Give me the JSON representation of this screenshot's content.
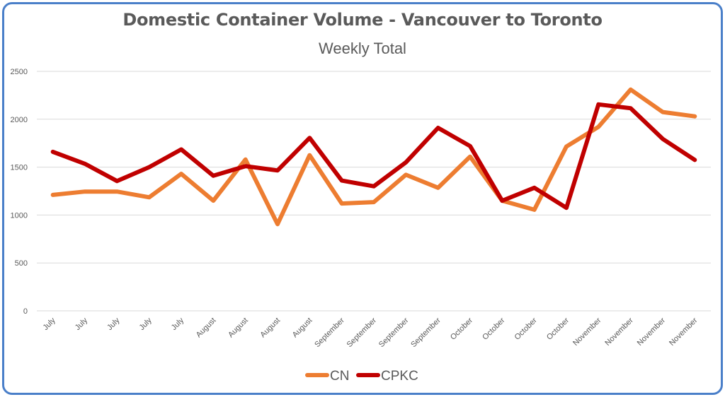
{
  "chart_data": {
    "type": "line",
    "title": "Domestic Container Volume - Vancouver to Toronto",
    "subtitle": "Weekly Total",
    "xlabel": "",
    "ylabel": "",
    "ylim": [
      0,
      2500
    ],
    "yticks": [
      0,
      500,
      1000,
      1500,
      2000,
      2500
    ],
    "grid": true,
    "legend_position": "bottom",
    "categories": [
      "July",
      "July",
      "July",
      "July",
      "July",
      "August",
      "August",
      "August",
      "August",
      "September",
      "September",
      "September",
      "September",
      "October",
      "October",
      "October",
      "October",
      "November",
      "November",
      "November",
      "November"
    ],
    "series": [
      {
        "name": "CN",
        "color": "#ed7d31",
        "values": [
          1210,
          1245,
          1245,
          1185,
          1430,
          1150,
          1580,
          905,
          1625,
          1120,
          1135,
          1420,
          1285,
          1610,
          1150,
          1055,
          1715,
          1920,
          2310,
          2075,
          2030
        ]
      },
      {
        "name": "CPKC",
        "color": "#c00000",
        "values": [
          1660,
          1535,
          1355,
          1500,
          1685,
          1410,
          1510,
          1465,
          1805,
          1360,
          1300,
          1550,
          1910,
          1720,
          1150,
          1285,
          1075,
          2155,
          2115,
          1795,
          1575
        ]
      }
    ]
  }
}
